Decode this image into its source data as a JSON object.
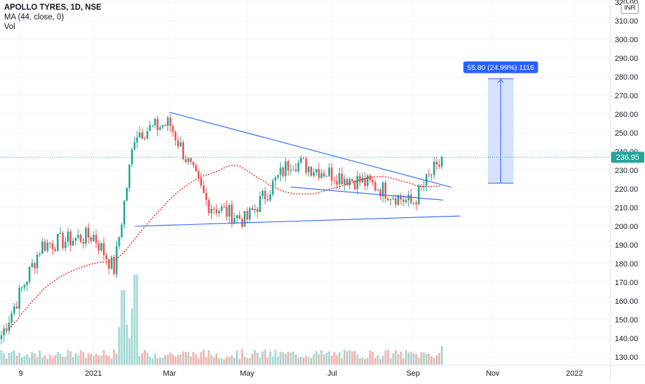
{
  "legend": {
    "title": "APOLLO TYRES, 1D, NSE",
    "ma": "MA (44, close, 0)",
    "vol": "Vol"
  },
  "currency_label": "INR",
  "price_scale": {
    "ticks": [
      "320.00",
      "310.00",
      "300.00",
      "290.00",
      "280.00",
      "270.00",
      "260.00",
      "250.00",
      "240.00",
      "230.00",
      "220.00",
      "210.00",
      "200.00",
      "190.00",
      "180.00",
      "170.00",
      "160.00",
      "150.00",
      "140.00",
      "130.00"
    ],
    "last_price_label": "236.95"
  },
  "time_scale": {
    "ticks": [
      "9",
      "2021",
      "Mar",
      "May",
      "Jul",
      "Sep",
      "Nov",
      "2022"
    ]
  },
  "measure_label": "55.80 (24.99%) 1116",
  "colors": {
    "up": "#26a69a",
    "down": "#ef5350",
    "ma": "#e53935",
    "trendline": "#2962ff",
    "measure_fill": "#cfdcfb",
    "measure_label_bg": "#2962ff",
    "last_price": "#26a69a"
  },
  "chart_data": {
    "type": "candlestick",
    "title": "APOLLO TYRES, 1D, NSE",
    "ylim": [
      126,
      320
    ],
    "price_series": [
      {
        "date": "Nov",
        "close": 140
      },
      {
        "date": "Dec",
        "close": 190
      },
      {
        "date": "2021",
        "close": 195
      },
      {
        "date": "Jan end",
        "close": 177
      },
      {
        "date": "Feb",
        "close": 250
      },
      {
        "date": "Mar",
        "close": 255
      },
      {
        "date": "Apr",
        "close": 212
      },
      {
        "date": "May",
        "close": 203
      },
      {
        "date": "Jun",
        "close": 235
      },
      {
        "date": "Jul",
        "close": 228
      },
      {
        "date": "Aug",
        "close": 222
      },
      {
        "date": "Sep",
        "close": 212
      },
      {
        "date": "Sep end",
        "close": 236.95
      }
    ],
    "last_price": 236.95,
    "ma_label": "MA (44, close, 0)",
    "annotations": [
      {
        "type": "trendline",
        "from": {
          "date": "Mar",
          "price": 261
        },
        "to": {
          "date": "Sep end",
          "price": 222
        }
      },
      {
        "type": "trendline",
        "from": {
          "date": "Jun",
          "price": 221
        },
        "to": {
          "date": "Sep end",
          "price": 214
        }
      },
      {
        "type": "trendline",
        "from": {
          "date": "Feb",
          "price": 200
        },
        "to": {
          "date": "Oct",
          "price": 205.5
        }
      },
      {
        "type": "measure",
        "from_price": 223,
        "to_price": 279,
        "label": "55.80 (24.99%) 1116"
      }
    ]
  }
}
